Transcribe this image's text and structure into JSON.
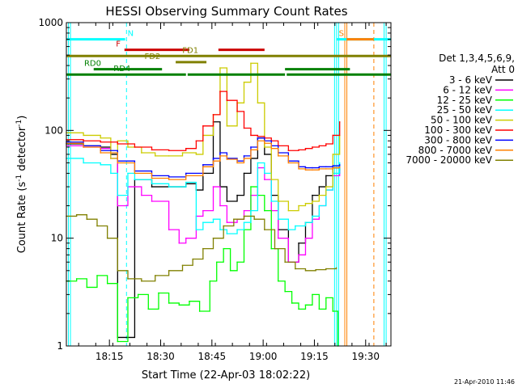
{
  "chart_data": {
    "type": "line",
    "title": "HESSI Observing Summary Count Rates",
    "xlabel": "Start Time (22-Apr-03 18:02:22)",
    "ylabel_main": "Count Rate (s",
    "ylabel_sup": "-1",
    "ylabel_mid": " detector",
    "ylabel_sup2": "-1",
    "ylabel_end": ")",
    "x_unit": "minutes after 18:02:22",
    "xlim": [
      0,
      95
    ],
    "ylim": [
      1,
      1000
    ],
    "y_scale": "log",
    "x_ticks": [
      {
        "label": "18:15",
        "x": 12.6
      },
      {
        "label": "18:30",
        "x": 27.6
      },
      {
        "label": "18:45",
        "x": 42.6
      },
      {
        "label": "19:00",
        "x": 57.6
      },
      {
        "label": "19:15",
        "x": 72.6
      },
      {
        "label": "19:30",
        "x": 87.6
      }
    ],
    "y_ticks": [
      {
        "label": "1",
        "y": 1
      },
      {
        "label": "10",
        "y": 10
      },
      {
        "label": "100",
        "y": 100
      },
      {
        "label": "1000",
        "y": 1000
      }
    ],
    "legend_header": [
      "Det 1,3,4,5,6,9,",
      "Att 0"
    ],
    "legend_position": "right",
    "series": [
      {
        "name": "3 - 6 keV",
        "color": "#000000",
        "x": [
          0,
          5,
          10,
          13,
          15,
          20,
          25,
          30,
          35,
          38,
          40,
          43,
          45,
          47,
          50,
          52,
          54,
          56,
          58,
          60,
          62,
          65,
          68,
          70,
          72,
          74,
          76,
          78,
          80
        ],
        "y": [
          75,
          72,
          70,
          60,
          1.2,
          35,
          30,
          30,
          32,
          28,
          40,
          120,
          30,
          22,
          25,
          40,
          55,
          85,
          60,
          25,
          12,
          6,
          9,
          14,
          25,
          30,
          38,
          45,
          40
        ]
      },
      {
        "name": "6 - 12 keV",
        "color": "#ff00ff",
        "x": [
          0,
          5,
          10,
          13,
          15,
          18,
          22,
          25,
          30,
          33,
          35,
          38,
          40,
          43,
          45,
          47,
          50,
          52,
          54,
          56,
          58,
          60,
          62,
          65,
          68,
          70,
          72,
          74,
          76,
          78,
          80
        ],
        "y": [
          72,
          70,
          68,
          55,
          20,
          30,
          25,
          22,
          12,
          9,
          10,
          16,
          18,
          30,
          20,
          14,
          15,
          18,
          25,
          45,
          35,
          18,
          10,
          6,
          7,
          10,
          15,
          20,
          28,
          38,
          42
        ]
      },
      {
        "name": "12 - 25 keV",
        "color": "#00ff00",
        "x": [
          0,
          3,
          6,
          9,
          12,
          15,
          18,
          21,
          24,
          27,
          30,
          33,
          36,
          39,
          42,
          44,
          46,
          48,
          50,
          52,
          54,
          56,
          58,
          60,
          62,
          64,
          66,
          68,
          70,
          72,
          74,
          76,
          78,
          79.5
        ],
        "y": [
          4,
          4.2,
          3.5,
          4.5,
          3.8,
          1.1,
          2.8,
          3,
          2.2,
          3.1,
          2.5,
          2.4,
          2.6,
          2.1,
          4,
          6,
          8,
          5,
          6,
          12,
          30,
          25,
          18,
          8,
          4,
          3.2,
          2.5,
          2.2,
          2.4,
          3,
          2.2,
          2.8,
          2.1,
          1
        ]
      },
      {
        "name": "25 - 50 keV",
        "color": "#00ffff",
        "x": [
          0,
          5,
          10,
          13,
          15,
          18,
          20,
          25,
          30,
          35,
          38,
          40,
          43,
          45,
          47,
          50,
          52,
          54,
          56,
          58,
          60,
          62,
          65,
          67,
          70,
          72,
          74,
          76,
          78,
          80
        ],
        "y": [
          55,
          50,
          48,
          40,
          25,
          40,
          35,
          32,
          30,
          33,
          12,
          14,
          15,
          12,
          11,
          12,
          14,
          18,
          50,
          40,
          22,
          15,
          12,
          13,
          14,
          16,
          20,
          28,
          40,
          50
        ]
      },
      {
        "name": "50 - 100 keV",
        "color": "#cccc00",
        "x": [
          0,
          5,
          10,
          13,
          15,
          18,
          22,
          26,
          30,
          34,
          38,
          40,
          43,
          45,
          47,
          50,
          52,
          54,
          56,
          58,
          60,
          62,
          65,
          68,
          70,
          72,
          74,
          76,
          78,
          80
        ],
        "y": [
          95,
          90,
          85,
          55,
          80,
          70,
          62,
          58,
          58,
          62,
          60,
          90,
          140,
          380,
          110,
          180,
          280,
          420,
          180,
          70,
          35,
          22,
          18,
          20,
          21,
          22,
          25,
          30,
          60,
          90
        ]
      },
      {
        "name": "100 - 300 keV",
        "color": "#ff0000",
        "x": [
          0,
          5,
          10,
          15,
          20,
          25,
          30,
          35,
          38,
          40,
          43,
          45,
          47,
          50,
          52,
          54,
          56,
          58,
          60,
          62,
          65,
          68,
          70,
          72,
          74,
          76,
          78,
          80
        ],
        "y": [
          82,
          80,
          78,
          75,
          70,
          66,
          65,
          68,
          80,
          110,
          140,
          230,
          190,
          150,
          105,
          90,
          88,
          85,
          80,
          72,
          65,
          66,
          68,
          70,
          72,
          75,
          90,
          120
        ]
      },
      {
        "name": "300 - 800 keV",
        "color": "#0000ff",
        "x": [
          0,
          5,
          10,
          15,
          20,
          25,
          30,
          35,
          40,
          43,
          45,
          47,
          50,
          52,
          54,
          56,
          58,
          60,
          62,
          65,
          68,
          70,
          72,
          74,
          76,
          78,
          80
        ],
        "y": [
          78,
          72,
          65,
          52,
          42,
          38,
          37,
          40,
          48,
          55,
          62,
          55,
          52,
          58,
          70,
          85,
          80,
          72,
          62,
          52,
          46,
          45,
          45,
          46,
          46,
          47,
          48
        ]
      },
      {
        "name": "800 - 7000 keV",
        "color": "#ff8000",
        "x": [
          0,
          5,
          10,
          15,
          20,
          25,
          30,
          35,
          40,
          43,
          45,
          47,
          50,
          52,
          54,
          56,
          58,
          60,
          62,
          65,
          68,
          70,
          72,
          74,
          76,
          78,
          80
        ],
        "y": [
          76,
          70,
          62,
          50,
          40,
          36,
          35,
          38,
          46,
          52,
          58,
          54,
          50,
          55,
          66,
          80,
          76,
          68,
          58,
          50,
          44,
          43,
          43,
          44,
          44,
          45,
          46
        ]
      },
      {
        "name": "7000 - 20000 keV",
        "color": "#808000",
        "x": [
          0,
          3,
          6,
          9,
          12,
          15,
          18,
          22,
          26,
          30,
          34,
          37,
          40,
          43,
          46,
          49,
          52,
          55,
          58,
          61,
          64,
          67,
          70,
          73,
          76,
          79
        ],
        "y": [
          16,
          16.5,
          15,
          13,
          10,
          5,
          4.2,
          4,
          4.5,
          5,
          5.6,
          6.4,
          8,
          10,
          13,
          15,
          16,
          15,
          12,
          8,
          6,
          5.2,
          5,
          5.1,
          5.2,
          5.3
        ]
      }
    ],
    "spike_series": [
      {
        "color": "#00ffff",
        "x": [
          0,
          0.6,
          1.2,
          78.5,
          79.1,
          79.7,
          93,
          93.6
        ]
      },
      {
        "color": "#ff8000",
        "x": [
          81.5,
          82.1
        ]
      }
    ],
    "dashed_lines": [
      {
        "color": "#00ffff",
        "x": 17.6
      },
      {
        "color": "#00ffff",
        "x": 95
      },
      {
        "color": "#ff8000",
        "x": 90
      }
    ],
    "flag_bars": [
      {
        "label": "N",
        "color": "#00ffff",
        "y": 700,
        "segments": [
          [
            0,
            17.2
          ],
          [
            79,
            95
          ]
        ],
        "label_x": 18.8
      },
      {
        "label": "S",
        "color": "#ff8000",
        "y": 700,
        "segments": [
          [
            82,
            90
          ]
        ],
        "label_x": 80.5
      },
      {
        "label": "F",
        "color": "#cc0000",
        "y": 560,
        "segments": [
          [
            17,
            36
          ],
          [
            44.5,
            58
          ]
        ],
        "label_x": 15.2
      },
      {
        "label": "FD1",
        "color": "#808000",
        "y": 490,
        "segments": [
          [
            0,
            95
          ]
        ],
        "label_x": 36.3
      },
      {
        "label": "FD2",
        "color": "#808000",
        "y": 430,
        "segments": [
          [
            32,
            41
          ]
        ],
        "label_x": 25.2
      },
      {
        "label": "RD0",
        "color": "#008000",
        "y": 370,
        "segments": [
          [
            8,
            28
          ],
          [
            64,
            83
          ]
        ],
        "label_x": 7.7
      },
      {
        "label": "RD4",
        "color": "#008000",
        "y": 330,
        "segments": [
          [
            0,
            35
          ],
          [
            35.5,
            64
          ],
          [
            64.5,
            95
          ]
        ],
        "label_x": 16.3
      }
    ]
  },
  "timestamp": "21-Apr-2010 11:46"
}
